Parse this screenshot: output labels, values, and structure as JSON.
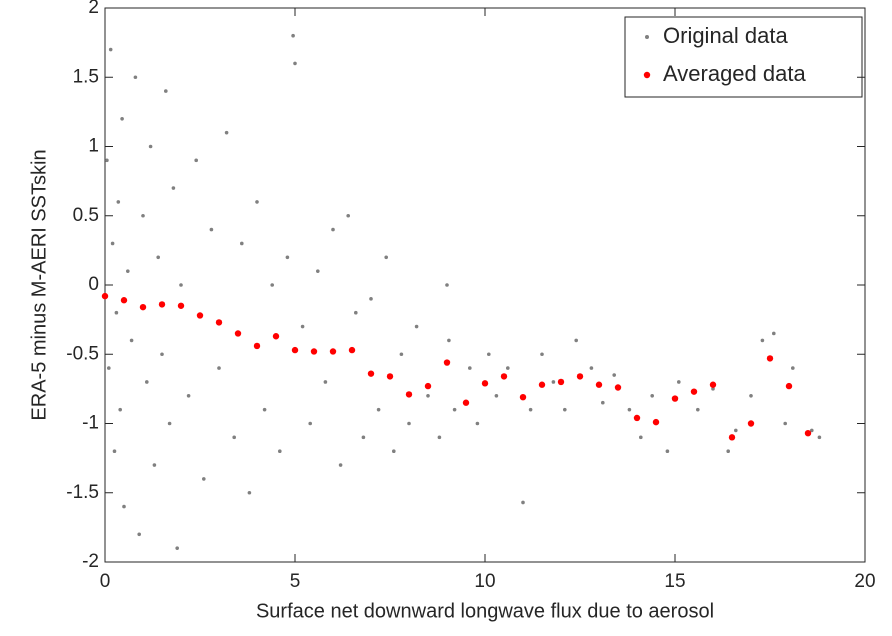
{
  "chart_data": {
    "type": "scatter",
    "xlabel": "Surface net downward longwave flux due to aerosol",
    "ylabel": "ERA-5 minus M-AERI SSTskin",
    "xlim": [
      0,
      20
    ],
    "xticks": [
      0,
      5,
      10,
      15,
      20
    ],
    "ylim": [
      -2,
      2
    ],
    "yticks": [
      -2,
      -1.5,
      -1,
      -0.5,
      0,
      0.5,
      1,
      1.5,
      2
    ],
    "legend": "top-right",
    "series": [
      {
        "name": "Original data",
        "color": "#808080",
        "x": [
          0.05,
          0.1,
          0.15,
          0.2,
          0.25,
          0.3,
          0.35,
          0.4,
          0.45,
          0.5,
          0.6,
          0.7,
          0.8,
          0.9,
          1.0,
          1.1,
          1.2,
          1.3,
          1.4,
          1.5,
          1.6,
          1.7,
          1.8,
          1.9,
          2.0,
          2.2,
          2.4,
          2.6,
          2.8,
          3.0,
          3.2,
          3.4,
          3.6,
          3.8,
          4.0,
          4.2,
          4.4,
          4.6,
          4.8,
          4.95,
          5.0,
          5.2,
          5.4,
          5.6,
          5.8,
          6.0,
          6.2,
          6.4,
          6.6,
          6.8,
          7.0,
          7.2,
          7.4,
          7.6,
          7.8,
          8.0,
          8.2,
          8.5,
          8.8,
          9.0,
          9.05,
          9.2,
          9.6,
          9.8,
          10.1,
          10.3,
          10.6,
          11.0,
          11.2,
          11.5,
          11.8,
          12.1,
          12.4,
          12.8,
          13.1,
          13.4,
          13.8,
          14.1,
          14.4,
          14.8,
          15.1,
          15.6,
          16.0,
          16.4,
          16.6,
          17.0,
          17.3,
          17.6,
          17.9,
          18.1,
          18.6,
          18.8
        ],
        "values": [
          0.9,
          -0.6,
          1.7,
          0.3,
          -1.2,
          -0.2,
          0.6,
          -0.9,
          1.2,
          -1.6,
          0.1,
          -0.4,
          1.5,
          -1.8,
          0.5,
          -0.7,
          1.0,
          -1.3,
          0.2,
          -0.5,
          1.4,
          -1.0,
          0.7,
          -1.9,
          0.0,
          -0.8,
          0.9,
          -1.4,
          0.4,
          -0.6,
          1.1,
          -1.1,
          0.3,
          -1.5,
          0.6,
          -0.9,
          0.0,
          -1.2,
          0.2,
          1.8,
          1.6,
          -0.3,
          -1.0,
          0.1,
          -0.7,
          0.4,
          -1.3,
          0.5,
          -0.2,
          -1.1,
          -0.1,
          -0.9,
          0.2,
          -1.2,
          -0.5,
          -1.0,
          -0.3,
          -0.8,
          -1.1,
          0.0,
          -0.4,
          -0.9,
          -0.6,
          -1.0,
          -0.5,
          -0.8,
          -0.6,
          -1.57,
          -0.9,
          -0.5,
          -0.7,
          -0.9,
          -0.4,
          -0.6,
          -0.85,
          -0.65,
          -0.9,
          -1.1,
          -0.8,
          -1.2,
          -0.7,
          -0.9,
          -0.75,
          -1.2,
          -1.05,
          -0.8,
          -0.4,
          -0.35,
          -1.0,
          -0.6,
          -1.05,
          -1.1
        ]
      },
      {
        "name": "Averaged data",
        "color": "#ff0000",
        "x": [
          0,
          0.5,
          1,
          1.5,
          2,
          2.5,
          3,
          3.5,
          4,
          4.5,
          5,
          5.5,
          6,
          6.5,
          7,
          7.5,
          8,
          8.5,
          9,
          9.5,
          10,
          10.5,
          11,
          11.5,
          12,
          12.5,
          13,
          13.5,
          14,
          14.5,
          15,
          15.5,
          16,
          16.5,
          17,
          17.5,
          18,
          18.5
        ],
        "values": [
          -0.08,
          -0.11,
          -0.16,
          -0.14,
          -0.15,
          -0.22,
          -0.27,
          -0.35,
          -0.44,
          -0.37,
          -0.47,
          -0.48,
          -0.48,
          -0.47,
          -0.64,
          -0.66,
          -0.79,
          -0.73,
          -0.56,
          -0.85,
          -0.71,
          -0.66,
          -0.81,
          -0.72,
          -0.7,
          -0.66,
          -0.72,
          -0.74,
          -0.96,
          -0.99,
          -0.82,
          -0.77,
          -0.72,
          -1.1,
          -1.0,
          -0.53,
          -0.73,
          -1.07
        ]
      }
    ]
  }
}
